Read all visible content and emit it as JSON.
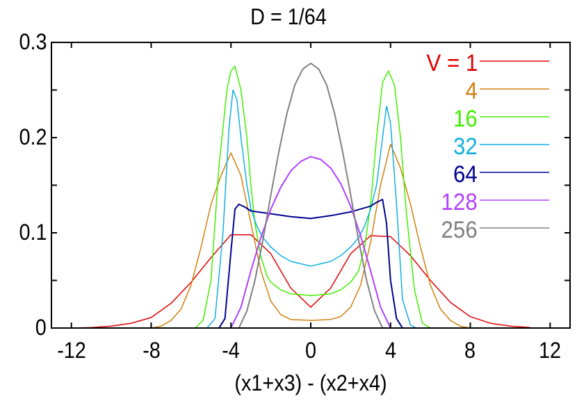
{
  "chart_data": {
    "type": "line",
    "title": "D = 1/64",
    "xlabel": "(x1+x3) - (x2+x4)",
    "ylabel": "",
    "xlim": [
      -13,
      13
    ],
    "ylim": [
      0,
      0.3
    ],
    "xticks": [
      "-12",
      "-8",
      "-4",
      "0",
      "4",
      "8",
      "12"
    ],
    "yticks": [
      "0",
      "0.1",
      "0.2",
      "0.3"
    ],
    "grid": false,
    "legend_position": "upper right",
    "series": [
      {
        "name": "V = 1",
        "color": "#e00000",
        "x": [
          -13,
          -12,
          -11,
          -10,
          -9,
          -8,
          -7,
          -6,
          -5,
          -4,
          -3,
          -2,
          -1,
          0,
          1,
          2,
          3,
          4,
          5,
          6,
          7,
          8,
          9,
          10,
          11,
          12,
          13
        ],
        "y": [
          0,
          0,
          0.0005,
          0.002,
          0.005,
          0.011,
          0.026,
          0.048,
          0.074,
          0.098,
          0.098,
          0.078,
          0.042,
          0.022,
          0.042,
          0.078,
          0.097,
          0.096,
          0.076,
          0.05,
          0.027,
          0.012,
          0.005,
          0.002,
          0.0005,
          0,
          0
        ]
      },
      {
        "name": "4",
        "color": "#d08010",
        "x": [
          -13,
          -8,
          -7.5,
          -7,
          -6.5,
          -6,
          -5.5,
          -5,
          -4.5,
          -4,
          -3.5,
          -3,
          -2.5,
          -2,
          -1.5,
          -1,
          0,
          1,
          1.5,
          2,
          2.5,
          3,
          3.5,
          4,
          4.5,
          5,
          5.5,
          6,
          6.5,
          7,
          7.5,
          8,
          13
        ],
        "y": [
          0,
          0,
          0.002,
          0.008,
          0.02,
          0.045,
          0.085,
          0.13,
          0.16,
          0.184,
          0.16,
          0.11,
          0.06,
          0.028,
          0.014,
          0.009,
          0.008,
          0.009,
          0.012,
          0.022,
          0.045,
          0.09,
          0.15,
          0.193,
          0.168,
          0.13,
          0.085,
          0.045,
          0.02,
          0.008,
          0.002,
          0,
          0
        ]
      },
      {
        "name": "16",
        "color": "#40f000",
        "x": [
          -13,
          -5.8,
          -5.4,
          -5,
          -4.6,
          -4.2,
          -4,
          -3.8,
          -3.5,
          -3.2,
          -3,
          -2.8,
          -2.5,
          -2.2,
          -2,
          -1.5,
          -1,
          0,
          1,
          1.5,
          2,
          2.4,
          2.7,
          3,
          3.3,
          3.6,
          3.9,
          4.2,
          4.5,
          4.8,
          5.2,
          5.6,
          6,
          13
        ],
        "y": [
          0,
          0,
          0.008,
          0.05,
          0.17,
          0.25,
          0.27,
          0.275,
          0.25,
          0.2,
          0.15,
          0.11,
          0.075,
          0.055,
          0.048,
          0.04,
          0.036,
          0.034,
          0.036,
          0.04,
          0.048,
          0.06,
          0.085,
          0.13,
          0.2,
          0.258,
          0.27,
          0.255,
          0.2,
          0.12,
          0.04,
          0.005,
          0,
          0
        ]
      },
      {
        "name": "32",
        "color": "#10b0e0",
        "x": [
          -13,
          -5.2,
          -4.8,
          -4.4,
          -4.1,
          -3.9,
          -3.7,
          -3.5,
          -3.2,
          -3,
          -2.7,
          -2.4,
          -2,
          -1.5,
          -1,
          0,
          1,
          1.5,
          2,
          2.4,
          2.7,
          3,
          3.3,
          3.6,
          3.8,
          4,
          4.3,
          4.6,
          5,
          5.3,
          13
        ],
        "y": [
          0,
          0,
          0.01,
          0.1,
          0.21,
          0.25,
          0.24,
          0.2,
          0.15,
          0.125,
          0.107,
          0.095,
          0.085,
          0.076,
          0.07,
          0.065,
          0.07,
          0.076,
          0.085,
          0.095,
          0.107,
          0.125,
          0.15,
          0.2,
          0.233,
          0.215,
          0.13,
          0.03,
          0.003,
          0,
          0
        ]
      },
      {
        "name": "64",
        "color": "#000090",
        "x": [
          -13,
          -4.6,
          -4.3,
          -4,
          -3.8,
          -3.6,
          -3.3,
          -3,
          -2,
          -1,
          0,
          1,
          2,
          3,
          3.3,
          3.6,
          3.8,
          4,
          4.3,
          4.6,
          13
        ],
        "y": [
          0,
          0,
          0.01,
          0.08,
          0.125,
          0.13,
          0.127,
          0.123,
          0.12,
          0.117,
          0.115,
          0.118,
          0.122,
          0.128,
          0.132,
          0.135,
          0.11,
          0.05,
          0.01,
          0,
          0
        ]
      },
      {
        "name": "128",
        "color": "#b040ff",
        "x": [
          -13,
          -4,
          -3.5,
          -3,
          -2.5,
          -2,
          -1.5,
          -1,
          -0.5,
          0,
          0.5,
          1,
          1.5,
          2,
          2.5,
          3,
          3.5,
          4,
          13
        ],
        "y": [
          0,
          0,
          0.022,
          0.06,
          0.095,
          0.125,
          0.148,
          0.165,
          0.175,
          0.18,
          0.177,
          0.168,
          0.152,
          0.128,
          0.097,
          0.06,
          0.022,
          0,
          0
        ]
      },
      {
        "name": "256",
        "color": "#808080",
        "x": [
          -13,
          -3.6,
          -3.2,
          -2.8,
          -2.4,
          -2,
          -1.6,
          -1.2,
          -0.8,
          -0.4,
          0,
          0.4,
          0.8,
          1.2,
          1.6,
          2,
          2.4,
          2.8,
          3.2,
          3.6,
          13
        ],
        "y": [
          0,
          0,
          0.018,
          0.05,
          0.092,
          0.14,
          0.185,
          0.225,
          0.255,
          0.272,
          0.278,
          0.272,
          0.255,
          0.225,
          0.185,
          0.14,
          0.092,
          0.05,
          0.018,
          0,
          0
        ]
      }
    ]
  }
}
